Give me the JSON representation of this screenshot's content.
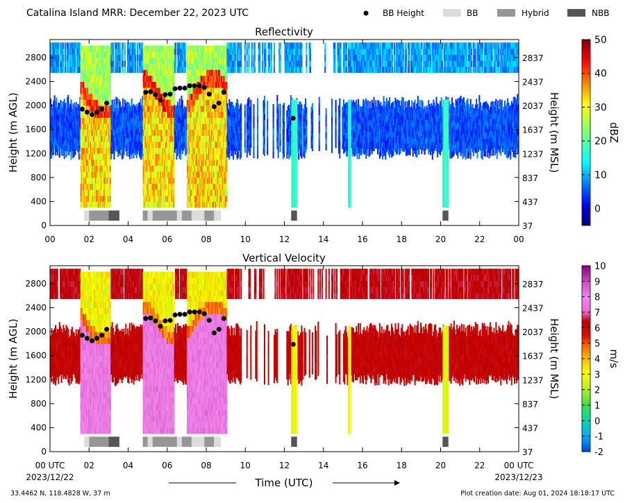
{
  "header": {
    "title": "Catalina Island MRR:  December 22, 2023 UTC",
    "legend": [
      {
        "label": "BB Height",
        "kind": "dot",
        "color": "#000000"
      },
      {
        "label": "BB",
        "kind": "swatch",
        "color": "#dcdcdc"
      },
      {
        "label": "Hybrid",
        "kind": "swatch",
        "color": "#969696"
      },
      {
        "label": "NBB",
        "kind": "swatch",
        "color": "#555555"
      }
    ]
  },
  "footer": {
    "location": "33.4462 N, 118.4828 W, 37 m",
    "creation": "Plot creation date: Aug 01, 2024 18:18:17 UTC",
    "xlabel": "Time (UTC)",
    "start_tick_label": "00 UTC",
    "start_date": "2023/12/22",
    "end_tick_label": "00 UTC",
    "end_date": "2023/12/23"
  },
  "chart_data": [
    {
      "type": "heatmap",
      "title": "Reflectivity",
      "xlabel": "",
      "ylabel": "Height (m AGL)",
      "ylabel_right": "Height (m MSL)",
      "x_ticks": [
        "00",
        "02",
        "04",
        "06",
        "08",
        "10",
        "12",
        "14",
        "16",
        "18",
        "20",
        "22",
        "00"
      ],
      "xlim": [
        0,
        24
      ],
      "ylim": [
        0,
        3100
      ],
      "y_ticks": [
        0,
        400,
        800,
        1200,
        1600,
        2000,
        2400,
        2800
      ],
      "y_ticks_right": [
        "37",
        "437",
        "837",
        "1237",
        "1637",
        "2037",
        "2437",
        "2837"
      ],
      "colorbar": {
        "label": "dBZ",
        "range": [
          -5,
          50
        ],
        "ticks": [
          0,
          10,
          20,
          30,
          40,
          50
        ],
        "colormap": "jet"
      },
      "bb_height": [
        {
          "x": 1.65,
          "y": 1940
        },
        {
          "x": 1.9,
          "y": 1890
        },
        {
          "x": 2.15,
          "y": 1850
        },
        {
          "x": 2.4,
          "y": 1890
        },
        {
          "x": 2.65,
          "y": 1940
        },
        {
          "x": 2.9,
          "y": 2040
        },
        {
          "x": 4.9,
          "y": 2220
        },
        {
          "x": 5.15,
          "y": 2230
        },
        {
          "x": 5.4,
          "y": 2180
        },
        {
          "x": 5.65,
          "y": 2090
        },
        {
          "x": 5.9,
          "y": 2180
        },
        {
          "x": 6.15,
          "y": 2190
        },
        {
          "x": 6.4,
          "y": 2280
        },
        {
          "x": 6.65,
          "y": 2290
        },
        {
          "x": 6.9,
          "y": 2290
        },
        {
          "x": 7.15,
          "y": 2330
        },
        {
          "x": 7.4,
          "y": 2330
        },
        {
          "x": 7.65,
          "y": 2330
        },
        {
          "x": 7.9,
          "y": 2300
        },
        {
          "x": 8.15,
          "y": 2190
        },
        {
          "x": 8.4,
          "y": 1980
        },
        {
          "x": 8.65,
          "y": 2040
        },
        {
          "x": 8.9,
          "y": 2220
        },
        {
          "x": 12.45,
          "y": 1790
        }
      ],
      "bb_type_strip": [
        {
          "start": 1.75,
          "end": 2.0,
          "type": "BB"
        },
        {
          "start": 2.0,
          "end": 3.0,
          "type": "Hybrid"
        },
        {
          "start": 3.0,
          "end": 3.55,
          "type": "NBB"
        },
        {
          "start": 4.75,
          "end": 5.0,
          "type": "Hybrid"
        },
        {
          "start": 5.0,
          "end": 5.25,
          "type": "BB"
        },
        {
          "start": 5.25,
          "end": 6.5,
          "type": "Hybrid"
        },
        {
          "start": 6.5,
          "end": 6.75,
          "type": "BB"
        },
        {
          "start": 6.75,
          "end": 7.25,
          "type": "Hybrid"
        },
        {
          "start": 7.25,
          "end": 7.9,
          "type": "BB"
        },
        {
          "start": 7.9,
          "end": 8.4,
          "type": "Hybrid"
        },
        {
          "start": 8.4,
          "end": 8.75,
          "type": "BB"
        },
        {
          "start": 12.35,
          "end": 12.65,
          "type": "NBB"
        },
        {
          "start": 20.1,
          "end": 20.4,
          "type": "NBB"
        }
      ]
    },
    {
      "type": "heatmap",
      "title": "Vertical Velocity",
      "xlabel": "Time (UTC)",
      "ylabel": "Height (m AGL)",
      "ylabel_right": "Height (m MSL)",
      "x_ticks": [
        "00 UTC",
        "02",
        "04",
        "06",
        "08",
        "10",
        "12",
        "14",
        "16",
        "18",
        "20",
        "22",
        "00 UTC"
      ],
      "xlim": [
        0,
        24
      ],
      "ylim": [
        0,
        3100
      ],
      "y_ticks": [
        0,
        400,
        800,
        1200,
        1600,
        2000,
        2400,
        2800
      ],
      "y_ticks_right": [
        "37",
        "437",
        "837",
        "1237",
        "1637",
        "2037",
        "2437",
        "2837"
      ],
      "colorbar": {
        "label": "m/s",
        "range": [
          -2,
          10
        ],
        "ticks": [
          -2,
          -1,
          0,
          1,
          2,
          3,
          4,
          5,
          6,
          7,
          8,
          9,
          10
        ],
        "colormap": "velocity"
      },
      "bb_height": [
        {
          "x": 1.65,
          "y": 1940
        },
        {
          "x": 1.9,
          "y": 1890
        },
        {
          "x": 2.15,
          "y": 1850
        },
        {
          "x": 2.4,
          "y": 1890
        },
        {
          "x": 2.65,
          "y": 1940
        },
        {
          "x": 2.9,
          "y": 2040
        },
        {
          "x": 4.9,
          "y": 2220
        },
        {
          "x": 5.15,
          "y": 2230
        },
        {
          "x": 5.4,
          "y": 2180
        },
        {
          "x": 5.65,
          "y": 2090
        },
        {
          "x": 5.9,
          "y": 2180
        },
        {
          "x": 6.15,
          "y": 2190
        },
        {
          "x": 6.4,
          "y": 2280
        },
        {
          "x": 6.65,
          "y": 2290
        },
        {
          "x": 6.9,
          "y": 2290
        },
        {
          "x": 7.15,
          "y": 2330
        },
        {
          "x": 7.4,
          "y": 2330
        },
        {
          "x": 7.65,
          "y": 2330
        },
        {
          "x": 7.9,
          "y": 2300
        },
        {
          "x": 8.15,
          "y": 2190
        },
        {
          "x": 8.4,
          "y": 1980
        },
        {
          "x": 8.65,
          "y": 2040
        },
        {
          "x": 8.9,
          "y": 2220
        },
        {
          "x": 12.45,
          "y": 1790
        }
      ],
      "bb_type_strip": [
        {
          "start": 1.75,
          "end": 2.0,
          "type": "BB"
        },
        {
          "start": 2.0,
          "end": 3.0,
          "type": "Hybrid"
        },
        {
          "start": 3.0,
          "end": 3.55,
          "type": "NBB"
        },
        {
          "start": 4.75,
          "end": 5.0,
          "type": "Hybrid"
        },
        {
          "start": 5.0,
          "end": 5.25,
          "type": "BB"
        },
        {
          "start": 5.25,
          "end": 6.5,
          "type": "Hybrid"
        },
        {
          "start": 6.5,
          "end": 6.75,
          "type": "BB"
        },
        {
          "start": 6.75,
          "end": 7.25,
          "type": "Hybrid"
        },
        {
          "start": 7.25,
          "end": 7.9,
          "type": "BB"
        },
        {
          "start": 7.9,
          "end": 8.4,
          "type": "Hybrid"
        },
        {
          "start": 8.4,
          "end": 8.75,
          "type": "BB"
        },
        {
          "start": 12.35,
          "end": 12.65,
          "type": "NBB"
        },
        {
          "start": 20.1,
          "end": 20.4,
          "type": "NBB"
        }
      ]
    }
  ]
}
